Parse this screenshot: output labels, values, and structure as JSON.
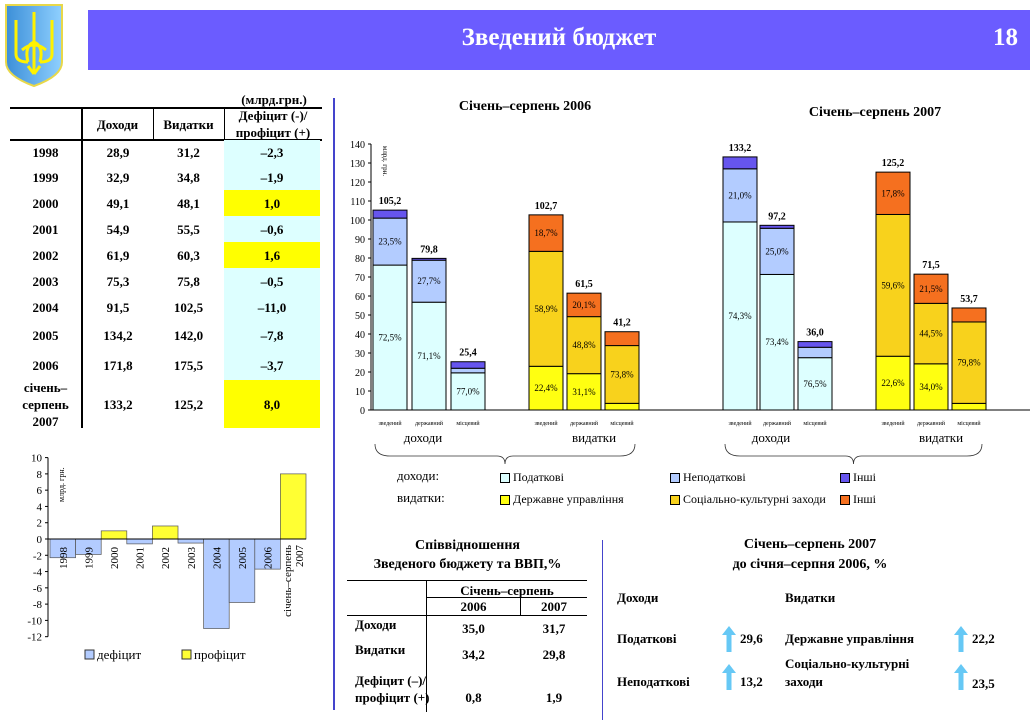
{
  "header": {
    "title": "Зведений бюджет",
    "page_number": "18",
    "bar_color": "#6B5CFF"
  },
  "logo": {
    "name": "ukraine-coat-of-arms-icon"
  },
  "budget_table": {
    "unit": "(млрд.грн.)",
    "columns": [
      "",
      "Доходи",
      "Видатки",
      "Дефіцит (-)/ профіцит (+)"
    ],
    "rows": [
      {
        "year": "1998",
        "income": "28,9",
        "expense": "31,2",
        "balance": "–2,3",
        "positive": false
      },
      {
        "year": "1999",
        "income": "32,9",
        "expense": "34,8",
        "balance": "–1,9",
        "positive": false
      },
      {
        "year": "2000",
        "income": "49,1",
        "expense": "48,1",
        "balance": "1,0",
        "positive": true
      },
      {
        "year": "2001",
        "income": "54,9",
        "expense": "55,5",
        "balance": "–0,6",
        "positive": false
      },
      {
        "year": "2002",
        "income": "61,9",
        "expense": "60,3",
        "balance": "1,6",
        "positive": true
      },
      {
        "year": "2003",
        "income": "75,3",
        "expense": "75,8",
        "balance": "–0,5",
        "positive": false
      },
      {
        "year": "2004",
        "income": "91,5",
        "expense": "102,5",
        "balance": "–11,0",
        "positive": false
      },
      {
        "year": "2005",
        "income": "134,2",
        "expense": "142,0",
        "balance": "–7,8",
        "positive": false
      },
      {
        "year": "2006",
        "income": "171,8",
        "expense": "175,5",
        "balance": "–3,7",
        "positive": false
      },
      {
        "year": "січень– серпень 2007",
        "income": "133,2",
        "expense": "125,2",
        "balance": "8,0",
        "positive": true
      }
    ],
    "colors": {
      "negative": "#DDFFFF",
      "positive": "#FFFF00"
    }
  },
  "chart_data": [
    {
      "type": "bar",
      "ylabel": "млрд. грн.",
      "ylim": [
        -12,
        10
      ],
      "yticks": [
        10,
        8,
        6,
        4,
        2,
        0,
        -2,
        -4,
        -6,
        -8,
        -10,
        -12
      ],
      "categories": [
        "1998",
        "1999",
        "2000",
        "2001",
        "2002",
        "2003",
        "2004",
        "2005",
        "2006",
        "січень–серпень 2007"
      ],
      "values": [
        -2.3,
        -1.9,
        1.0,
        -0.6,
        1.6,
        -0.5,
        -11.0,
        -7.8,
        -3.7,
        8.0
      ],
      "legend": [
        {
          "name": "дефіцит",
          "color": "#B3CCFF"
        },
        {
          "name": "профіцит",
          "color": "#FFFF33"
        }
      ],
      "legend_position": "bottom"
    },
    {
      "type": "stacked-bar",
      "ylabel": "млрд. грн.",
      "ylim": [
        0,
        140
      ],
      "yticks": [
        0,
        10,
        20,
        30,
        40,
        50,
        60,
        70,
        80,
        90,
        100,
        110,
        120,
        130,
        140
      ],
      "panels": [
        {
          "title": "Січень–серпень 2006",
          "groups": [
            {
              "label": "доходи",
              "bars": [
                {
                  "category": "зведений",
                  "total": "105,2",
                  "total_value": 105.2,
                  "shares": [
                    72.5,
                    23.5,
                    4.0
                  ],
                  "labels": [
                    "72,5%",
                    "23,5%",
                    ""
                  ]
                },
                {
                  "category": "державний",
                  "total": "79,8",
                  "total_value": 79.8,
                  "shares": [
                    71.1,
                    27.7,
                    1.2
                  ],
                  "labels": [
                    "71,1%",
                    "27,7%",
                    ""
                  ]
                },
                {
                  "category": "місцевий",
                  "total": "25,4",
                  "total_value": 25.4,
                  "shares": [
                    77.0,
                    9.5,
                    13.5
                  ],
                  "labels": [
                    "77,0%",
                    "",
                    ""
                  ]
                }
              ]
            },
            {
              "label": "видатки",
              "bars": [
                {
                  "category": "зведений",
                  "total": "102,7",
                  "total_value": 102.7,
                  "shares": [
                    22.4,
                    58.9,
                    18.7
                  ],
                  "labels": [
                    "22,4%",
                    "58,9%",
                    "18,7%"
                  ]
                },
                {
                  "category": "державний",
                  "total": "61,5",
                  "total_value": 61.5,
                  "shares": [
                    31.1,
                    48.8,
                    20.1
                  ],
                  "labels": [
                    "31,1%",
                    "48,8%",
                    "20,1%"
                  ]
                },
                {
                  "category": "місцевий",
                  "total": "41,2",
                  "total_value": 41.2,
                  "shares": [
                    8.5,
                    73.8,
                    17.7
                  ],
                  "labels": [
                    "",
                    "73,8%",
                    ""
                  ]
                }
              ]
            }
          ]
        },
        {
          "title": "Січень–серпень 2007",
          "groups": [
            {
              "label": "доходи",
              "bars": [
                {
                  "category": "зведений",
                  "total": "133,2",
                  "total_value": 133.2,
                  "shares": [
                    74.3,
                    21.0,
                    4.7
                  ],
                  "labels": [
                    "74,3%",
                    "21,0%",
                    ""
                  ]
                },
                {
                  "category": "державний",
                  "total": "97,2",
                  "total_value": 97.2,
                  "shares": [
                    73.4,
                    25.0,
                    1.6
                  ],
                  "labels": [
                    "73,4%",
                    "25,0%",
                    ""
                  ]
                },
                {
                  "category": "місцевий",
                  "total": "36,0",
                  "total_value": 36.0,
                  "shares": [
                    76.5,
                    15.2,
                    8.3
                  ],
                  "labels": [
                    "76,5%",
                    "",
                    ""
                  ]
                }
              ]
            },
            {
              "label": "видатки",
              "bars": [
                {
                  "category": "зведений",
                  "total": "125,2",
                  "total_value": 125.2,
                  "shares": [
                    22.6,
                    59.6,
                    17.8
                  ],
                  "labels": [
                    "22,6%",
                    "59,6%",
                    "17,8%"
                  ]
                },
                {
                  "category": "державний",
                  "total": "71,5",
                  "total_value": 71.5,
                  "shares": [
                    34.0,
                    44.5,
                    21.5
                  ],
                  "labels": [
                    "34,0%",
                    "44,5%",
                    "21,5%"
                  ]
                },
                {
                  "category": "місцевий",
                  "total": "53,7",
                  "total_value": 53.7,
                  "shares": [
                    6.5,
                    79.8,
                    13.7
                  ],
                  "labels": [
                    "",
                    "79,8%",
                    ""
                  ]
                }
              ]
            }
          ]
        }
      ],
      "legend": {
        "income_label": "доходи:",
        "expense_label": "видатки:",
        "income": [
          {
            "name": "Податкові",
            "color": "#DDFFFF"
          },
          {
            "name": "Неподаткові",
            "color": "#B3CCFF"
          },
          {
            "name": "Інші",
            "color": "#6655EE"
          }
        ],
        "expense": [
          {
            "name": "Державне управління",
            "color": "#FFFF11"
          },
          {
            "name": "Соціально-культурні заходи",
            "color": "#F8D21C"
          },
          {
            "name": "Інші",
            "color": "#F5701F"
          }
        ]
      },
      "legend_position": "bottom"
    }
  ],
  "gdp_table": {
    "title_line1": "Співвідношення",
    "title_line2": "Зведеного бюджету та ВВП,%",
    "period": "Січень–серпень",
    "years": [
      "2006",
      "2007"
    ],
    "rows": [
      {
        "label": "Доходи",
        "v2006": "35,0",
        "v2007": "31,7"
      },
      {
        "label": "Видатки",
        "v2006": "34,2",
        "v2007": "29,8"
      },
      {
        "label_line1": "Дефіцит (–)/",
        "label_line2": "профіцит (+)",
        "v2006": "0,8",
        "v2007": "1,9"
      }
    ]
  },
  "growth": {
    "title_line1": "Січень–серпень 2007",
    "title_line2": "до січня–серпня 2006, %",
    "income_header": "Доходи",
    "expense_header": "Видатки",
    "income": [
      {
        "label": "Податкові",
        "value": "29,6",
        "direction": "up"
      },
      {
        "label": "Неподаткові",
        "value": "13,2",
        "direction": "up"
      }
    ],
    "expense": [
      {
        "label": "Державне управління",
        "value": "22,2",
        "direction": "up"
      },
      {
        "label_line1": "Соціально-культурні",
        "label_line2": "заходи",
        "value": "23,5",
        "direction": "up"
      }
    ],
    "arrow_color": "#66C8F5"
  }
}
